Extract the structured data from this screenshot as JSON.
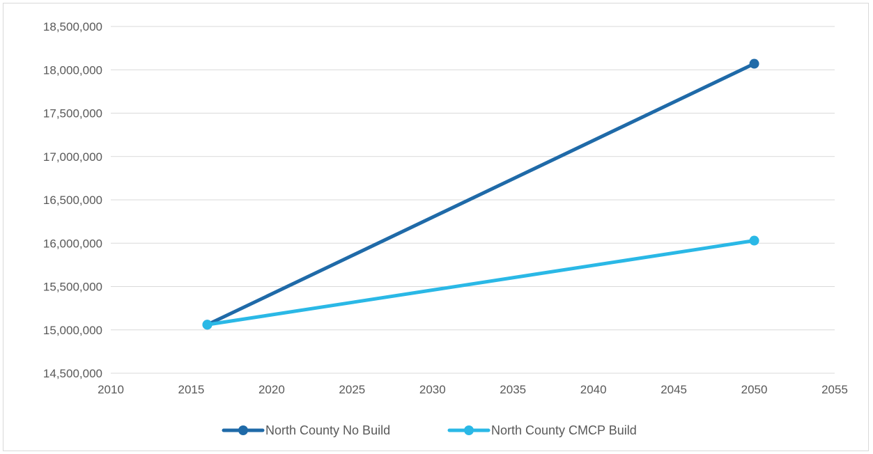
{
  "chart_data": {
    "type": "line",
    "title": "",
    "xlabel": "",
    "ylabel": "",
    "x_ticks": [
      "2010",
      "2015",
      "2020",
      "2025",
      "2030",
      "2035",
      "2040",
      "2045",
      "2050",
      "2055"
    ],
    "y_ticks": [
      "14,500,000",
      "15,000,000",
      "15,500,000",
      "16,000,000",
      "16,500,000",
      "17,000,000",
      "17,500,000",
      "18,000,000",
      "18,500,000"
    ],
    "xlim": [
      2010,
      2055
    ],
    "ylim": [
      14500000,
      18500000
    ],
    "grid": "horizontal",
    "legend_position": "bottom",
    "series": [
      {
        "name": "North County No Build",
        "color": "#1f6aa8",
        "x": [
          2016,
          2050
        ],
        "y": [
          15060000,
          18070000
        ]
      },
      {
        "name": "North County CMCP Build",
        "color": "#2ab8e6",
        "x": [
          2016,
          2050
        ],
        "y": [
          15060000,
          16030000
        ]
      }
    ]
  }
}
